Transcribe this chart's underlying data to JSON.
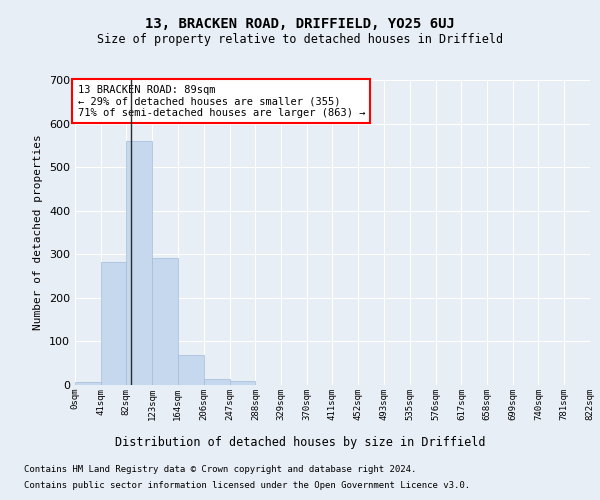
{
  "title": "13, BRACKEN ROAD, DRIFFIELD, YO25 6UJ",
  "subtitle": "Size of property relative to detached houses in Driffield",
  "xlabel": "Distribution of detached houses by size in Driffield",
  "ylabel": "Number of detached properties",
  "bin_edges": [
    0,
    41,
    82,
    123,
    164,
    206,
    247,
    288,
    329,
    370,
    411,
    452,
    493,
    535,
    576,
    617,
    658,
    699,
    740,
    781,
    822
  ],
  "bar_heights": [
    8,
    283,
    560,
    292,
    69,
    14,
    10,
    0,
    0,
    0,
    0,
    0,
    0,
    0,
    0,
    0,
    0,
    0,
    0,
    0
  ],
  "bar_color": "#c5d8ed",
  "bar_edgecolor": "#a0bcd8",
  "property_size": 89,
  "vline_color": "#2c2c2c",
  "annotation_text": "13 BRACKEN ROAD: 89sqm\n← 29% of detached houses are smaller (355)\n71% of semi-detached houses are larger (863) →",
  "annotation_boxcolor": "white",
  "annotation_edgecolor": "red",
  "ylim": [
    0,
    700
  ],
  "yticks": [
    0,
    100,
    200,
    300,
    400,
    500,
    600,
    700
  ],
  "footer_line1": "Contains HM Land Registry data © Crown copyright and database right 2024.",
  "footer_line2": "Contains public sector information licensed under the Open Government Licence v3.0.",
  "background_color": "#e8eef5",
  "plot_background": "#e8eef5",
  "grid_color": "white"
}
